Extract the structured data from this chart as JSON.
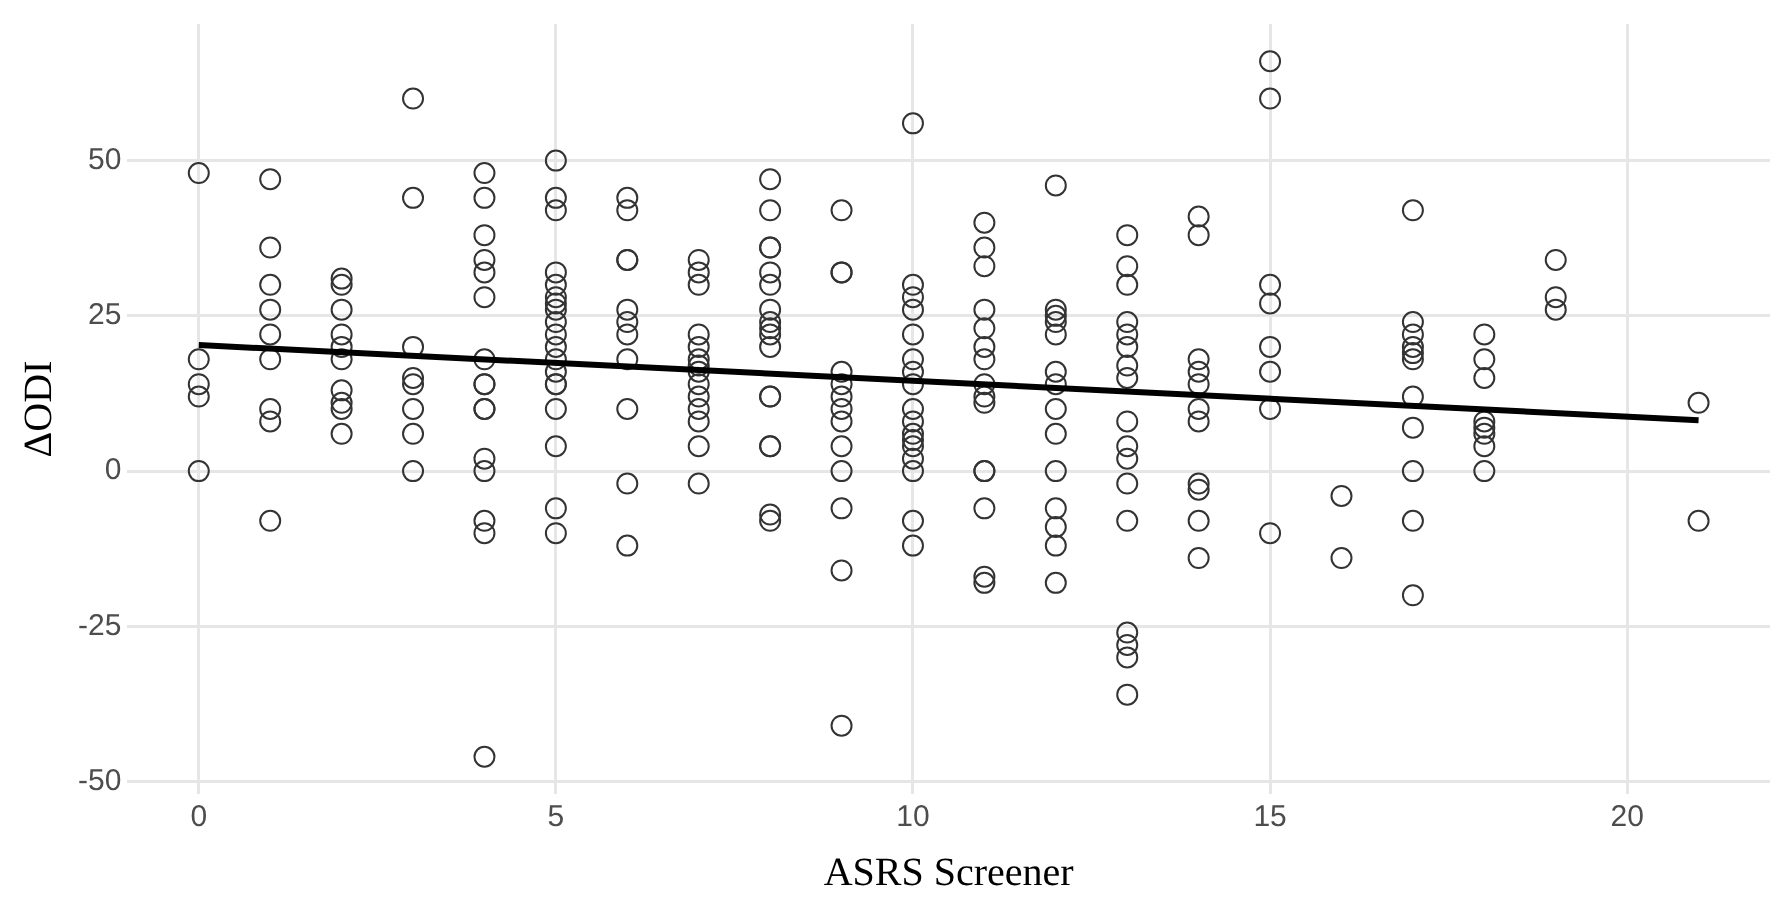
{
  "chart_data": {
    "type": "scatter",
    "xlabel": "ASRS Screener",
    "ylabel": "ΔODI",
    "xlim": [
      -1,
      22
    ],
    "ylim": [
      -52,
      72
    ],
    "xticks": [
      0,
      5,
      10,
      15,
      20
    ],
    "yticks": [
      -50,
      -25,
      0,
      25,
      50
    ],
    "grid": true,
    "legend": false,
    "marker": "circle",
    "series": [
      {
        "color": "#333333",
        "x": [
          0,
          0,
          0,
          0,
          0,
          1,
          1,
          1,
          1,
          1,
          1,
          1,
          1,
          1,
          2,
          2,
          2,
          2,
          2,
          2,
          2,
          2,
          2,
          2,
          3,
          3,
          3,
          3,
          3,
          3,
          3,
          3,
          4,
          4,
          4,
          4,
          4,
          4,
          4,
          4,
          4,
          4,
          4,
          4,
          4,
          4,
          4,
          4,
          5,
          5,
          5,
          5,
          5,
          5,
          5,
          5,
          5,
          5,
          5,
          5,
          5,
          5,
          5,
          5,
          5,
          5,
          5,
          6,
          6,
          6,
          6,
          6,
          6,
          6,
          6,
          6,
          6,
          6,
          7,
          7,
          7,
          7,
          7,
          7,
          7,
          7,
          7,
          7,
          7,
          7,
          7,
          7,
          8,
          8,
          8,
          8,
          8,
          8,
          8,
          8,
          8,
          8,
          8,
          8,
          8,
          8,
          8,
          8,
          8,
          9,
          9,
          9,
          9,
          9,
          9,
          9,
          9,
          9,
          9,
          9,
          9,
          9,
          10,
          10,
          10,
          10,
          10,
          10,
          10,
          10,
          10,
          10,
          10,
          10,
          10,
          10,
          10,
          10,
          10,
          11,
          11,
          11,
          11,
          11,
          11,
          11,
          11,
          11,
          11,
          11,
          11,
          11,
          11,
          11,
          12,
          12,
          12,
          12,
          12,
          12,
          12,
          12,
          12,
          12,
          12,
          12,
          12,
          12,
          13,
          13,
          13,
          13,
          13,
          13,
          13,
          13,
          13,
          13,
          13,
          13,
          13,
          13,
          13,
          13,
          13,
          14,
          14,
          14,
          14,
          14,
          14,
          14,
          14,
          14,
          14,
          14,
          15,
          15,
          15,
          15,
          15,
          15,
          15,
          15,
          16,
          16,
          17,
          17,
          17,
          17,
          17,
          17,
          17,
          17,
          17,
          17,
          17,
          18,
          18,
          18,
          18,
          18,
          18,
          18,
          18,
          19,
          19,
          19,
          21,
          21
        ],
        "values": [
          48,
          18,
          14,
          12,
          0,
          47,
          36,
          30,
          26,
          22,
          18,
          10,
          8,
          -8,
          31,
          30,
          26,
          22,
          20,
          18,
          13,
          11,
          10,
          6,
          60,
          44,
          20,
          15,
          14,
          10,
          6,
          0,
          48,
          44,
          38,
          34,
          32,
          28,
          18,
          14,
          14,
          10,
          10,
          2,
          0,
          -8,
          -10,
          -46,
          50,
          44,
          42,
          32,
          30,
          28,
          27,
          26,
          24,
          22,
          20,
          18,
          16,
          14,
          14,
          10,
          4,
          -6,
          -10,
          44,
          42,
          34,
          34,
          26,
          24,
          22,
          18,
          10,
          -2,
          -12,
          34,
          32,
          30,
          22,
          20,
          18,
          17,
          16,
          14,
          12,
          10,
          8,
          4,
          -2,
          47,
          42,
          36,
          36,
          32,
          30,
          26,
          24,
          23,
          22,
          20,
          12,
          12,
          4,
          4,
          -7,
          -8,
          42,
          32,
          32,
          16,
          14,
          12,
          10,
          8,
          4,
          0,
          -6,
          -16,
          -41,
          56,
          30,
          28,
          26,
          22,
          18,
          16,
          14,
          10,
          8,
          6,
          5,
          4,
          2,
          0,
          -8,
          -12,
          40,
          36,
          33,
          26,
          23,
          20,
          18,
          14,
          12,
          11,
          0,
          0,
          -6,
          -17,
          -18,
          46,
          26,
          25,
          24,
          22,
          16,
          14,
          10,
          6,
          0,
          -6,
          -9,
          -12,
          -18,
          38,
          33,
          30,
          24,
          22,
          20,
          17,
          15,
          8,
          4,
          2,
          -2,
          -8,
          -26,
          -28,
          -30,
          -36,
          41,
          38,
          18,
          16,
          14,
          10,
          8,
          -2,
          -3,
          -8,
          -14,
          66,
          60,
          30,
          27,
          20,
          16,
          10,
          -10,
          -4,
          -14,
          42,
          24,
          22,
          20,
          19,
          18,
          12,
          7,
          0,
          -8,
          -20,
          22,
          18,
          15,
          8,
          7,
          6,
          4,
          0,
          34,
          28,
          26,
          11,
          -8
        ]
      },
      {
        "type": "line",
        "color": "#000000",
        "marker": "none",
        "x": [
          0,
          21
        ],
        "values": [
          20.3,
          8.2
        ]
      }
    ]
  }
}
